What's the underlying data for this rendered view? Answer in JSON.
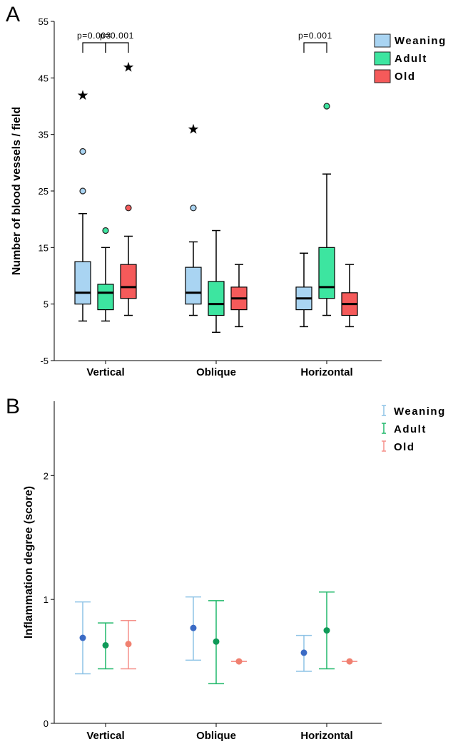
{
  "panels": {
    "a_label": "A",
    "b_label": "B"
  },
  "colors": {
    "weaning_fill": "#a9d4f2",
    "adult_fill": "#3de5a0",
    "old_fill": "#f55a5a",
    "weaning_dark": "#3b6bc5",
    "adult_dark": "#0f9a58",
    "old_dark": "#f08070",
    "weaning_bar": "#8ec3e6",
    "adult_bar": "#20b86a",
    "old_bar": "#f5908a"
  },
  "chart_data": [
    {
      "type": "box",
      "panel": "A",
      "ylabel": "Number of blood vessels / field",
      "xlabel": "",
      "ylim": [
        -5,
        55
      ],
      "yticks": [
        -5,
        5,
        15,
        25,
        35,
        45,
        55
      ],
      "categories": [
        "Vertical",
        "Oblique",
        "Horizontal"
      ],
      "legend": {
        "position": "top-right",
        "entries": [
          "Weaning",
          "Adult",
          "Old"
        ]
      },
      "series": [
        {
          "name": "Weaning",
          "boxes": [
            {
              "min": 2,
              "q1": 5,
              "median": 7,
              "q3": 12.5,
              "max": 21,
              "outliers": [
                25,
                32
              ],
              "extremes": [
                42
              ]
            },
            {
              "min": 3,
              "q1": 5,
              "median": 7,
              "q3": 11.5,
              "max": 16,
              "outliers": [
                22
              ],
              "extremes": [
                36
              ]
            },
            {
              "min": 1,
              "q1": 4,
              "median": 6,
              "q3": 8,
              "max": 14,
              "outliers": [],
              "extremes": []
            }
          ]
        },
        {
          "name": "Adult",
          "boxes": [
            {
              "min": 2,
              "q1": 4,
              "median": 7,
              "q3": 8.5,
              "max": 15,
              "outliers": [
                18
              ],
              "extremes": []
            },
            {
              "min": 0,
              "q1": 3,
              "median": 5,
              "q3": 9,
              "max": 18,
              "outliers": [],
              "extremes": []
            },
            {
              "min": 3,
              "q1": 6,
              "median": 8,
              "q3": 15,
              "max": 28,
              "outliers": [
                40
              ],
              "extremes": []
            }
          ]
        },
        {
          "name": "Old",
          "boxes": [
            {
              "min": 3,
              "q1": 6,
              "median": 8,
              "q3": 12,
              "max": 17,
              "outliers": [
                22
              ],
              "extremes": [
                47
              ]
            },
            {
              "min": 1,
              "q1": 4,
              "median": 6,
              "q3": 8,
              "max": 12,
              "outliers": [],
              "extremes": []
            },
            {
              "min": 1,
              "q1": 3,
              "median": 5,
              "q3": 7,
              "max": 12,
              "outliers": [],
              "extremes": []
            }
          ]
        }
      ],
      "annotations": [
        {
          "text": "p=0.003",
          "category": "Vertical",
          "from": "Weaning",
          "to": "Adult"
        },
        {
          "text": "p=0.001",
          "category": "Vertical",
          "from": "Adult",
          "to": "Old"
        },
        {
          "text": "p=0.001",
          "category": "Horizontal",
          "from": "Weaning",
          "to": "Adult"
        }
      ]
    },
    {
      "type": "errorbar",
      "panel": "B",
      "ylabel": "Inflammation degree (score)",
      "xlabel": "",
      "ylim": [
        0,
        2.6
      ],
      "yticks": [
        0,
        1,
        2
      ],
      "categories": [
        "Vertical",
        "Oblique",
        "Horizontal"
      ],
      "legend": {
        "position": "top-right",
        "entries": [
          "Weaning",
          "Adult",
          "Old"
        ]
      },
      "series": [
        {
          "name": "Weaning",
          "points": [
            {
              "mean": 0.69,
              "low": 0.4,
              "high": 0.98
            },
            {
              "mean": 0.77,
              "low": 0.51,
              "high": 1.02
            },
            {
              "mean": 0.57,
              "low": 0.42,
              "high": 0.71
            }
          ]
        },
        {
          "name": "Adult",
          "points": [
            {
              "mean": 0.63,
              "low": 0.44,
              "high": 0.81
            },
            {
              "mean": 0.66,
              "low": 0.32,
              "high": 0.99
            },
            {
              "mean": 0.75,
              "low": 0.44,
              "high": 1.06
            }
          ]
        },
        {
          "name": "Old",
          "points": [
            {
              "mean": 0.64,
              "low": 0.44,
              "high": 0.83
            },
            {
              "mean": 0.5,
              "low": 0.5,
              "high": 0.5
            },
            {
              "mean": 0.5,
              "low": 0.5,
              "high": 0.5
            }
          ]
        }
      ]
    }
  ]
}
